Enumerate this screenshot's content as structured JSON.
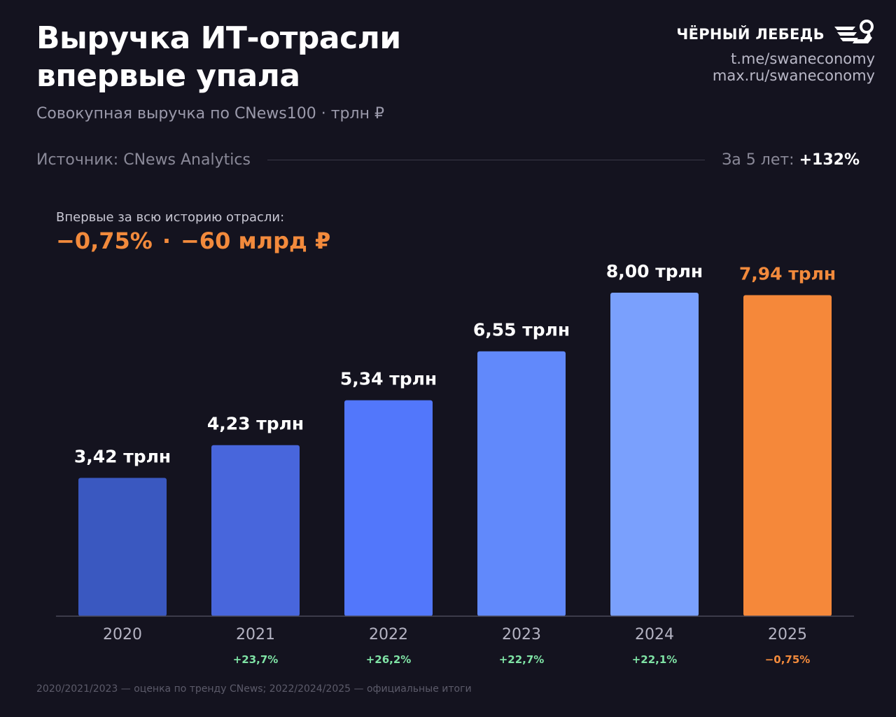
{
  "header": {
    "title_line1": "Выручка ИТ-отрасли",
    "title_line2": "впервые упала",
    "subtitle": "Совокупная выручка по CNews100  ·  трлн ₽"
  },
  "brand": {
    "name": "ЧЁРНЫЙ ЛЕБЕДЬ",
    "logo_icon": "black-swan-logo",
    "link1": "t.me/swaneconomy",
    "link2": "max.ru/swaneconomy"
  },
  "source": {
    "label": "Источник: CNews Analytics",
    "growth_label": "За 5 лет:",
    "growth_value": "+132%"
  },
  "callout": {
    "label": "Впервые за всю историю отрасли:",
    "percent": "−0,75%",
    "separator": "·",
    "amount": "−60 млрд ₽"
  },
  "footnote": "2020/2021/2023 — оценка по тренду CNews; 2022/2024/2025 — официальные итоги",
  "colors": {
    "background": "#14131f",
    "accent_orange": "#f28a3c",
    "positive_green": "#7fe3a5",
    "bar_2020": "#3a58c0",
    "bar_2021": "#4866dc",
    "bar_2022": "#5277fb",
    "bar_2023": "#6189fb",
    "bar_2024": "#7aa0fd",
    "bar_2025": "#f5883a"
  },
  "chart_data": {
    "type": "bar",
    "categories": [
      "2020",
      "2021",
      "2022",
      "2023",
      "2024",
      "2025"
    ],
    "values": [
      3.42,
      4.23,
      5.34,
      6.55,
      8.0,
      7.94
    ],
    "value_labels": [
      "3,42 трлн",
      "4,23 трлн",
      "5,34 трлн",
      "6,55 трлн",
      "8,00 трлн",
      "7,94 трлн"
    ],
    "change_labels": [
      "",
      "+23,7%",
      "+26,2%",
      "+22,7%",
      "+22,1%",
      "−0,75%"
    ],
    "ylim": [
      0,
      8
    ],
    "grid": false,
    "legend": "none"
  }
}
